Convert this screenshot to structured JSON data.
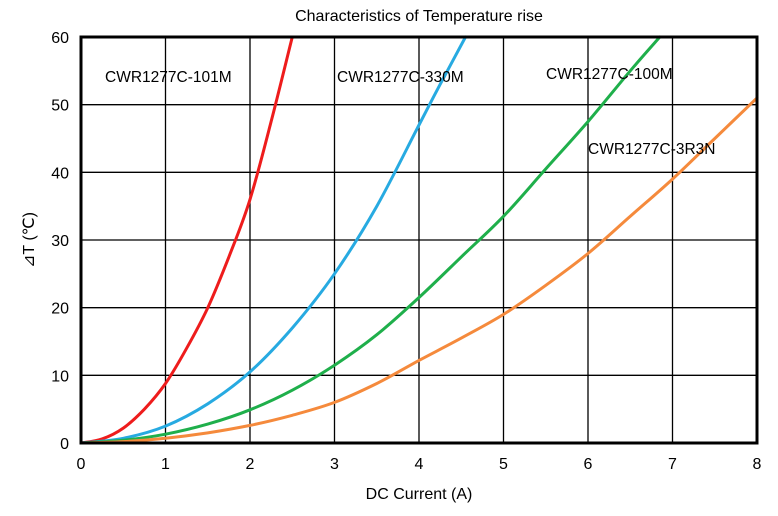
{
  "chart_data": {
    "type": "line",
    "title": "Characteristics of Temperature rise",
    "xlabel": "DC Current (A)",
    "ylabel": "⊿T (℃)",
    "xlim": [
      0,
      8
    ],
    "ylim": [
      0,
      60
    ],
    "x_ticks": [
      "0",
      "1",
      "2",
      "3",
      "4",
      "5",
      "6",
      "7",
      "8"
    ],
    "y_ticks": [
      "0",
      "10",
      "20",
      "30",
      "40",
      "50",
      "60"
    ],
    "grid": true,
    "series": [
      {
        "name": "CWR1277C-101M",
        "color": "#ee1c1c",
        "x": [
          0,
          0.25,
          0.5,
          0.75,
          1.0,
          1.25,
          1.5,
          1.75,
          2.0,
          2.25,
          2.5
        ],
        "y": [
          0,
          0.6,
          2.2,
          5.0,
          8.8,
          14.0,
          20.0,
          27.5,
          36.0,
          47.5,
          60.0
        ]
      },
      {
        "name": "CWR1277C-330M",
        "color": "#27aae1",
        "x": [
          0,
          0.5,
          1.0,
          1.5,
          2.0,
          2.5,
          3.0,
          3.5,
          4.0,
          4.25,
          4.55
        ],
        "y": [
          0,
          0.7,
          2.5,
          5.8,
          10.5,
          17.0,
          25.0,
          35.0,
          47.0,
          53.0,
          60.0
        ]
      },
      {
        "name": "CWR1277C-100M",
        "color": "#1faf4b",
        "x": [
          0,
          0.5,
          1.0,
          1.5,
          2.0,
          2.5,
          3.0,
          3.5,
          4.0,
          4.5,
          5.0,
          5.5,
          6.0,
          6.5,
          6.85
        ],
        "y": [
          0,
          0.4,
          1.3,
          2.8,
          4.9,
          7.8,
          11.5,
          16.0,
          21.5,
          27.5,
          33.5,
          40.5,
          47.5,
          55.0,
          60.0
        ]
      },
      {
        "name": "CWR1277C-3R3N",
        "color": "#f58a3c",
        "x": [
          0,
          0.5,
          1.0,
          1.5,
          2.0,
          2.5,
          3.0,
          3.5,
          4.0,
          4.5,
          5.0,
          5.5,
          6.0,
          6.5,
          7.0,
          7.5,
          8.0
        ],
        "y": [
          0,
          0.2,
          0.7,
          1.5,
          2.6,
          4.1,
          6.0,
          8.8,
          12.2,
          15.5,
          19.0,
          23.3,
          28.0,
          33.5,
          39.0,
          45.0,
          51.0
        ]
      }
    ]
  }
}
